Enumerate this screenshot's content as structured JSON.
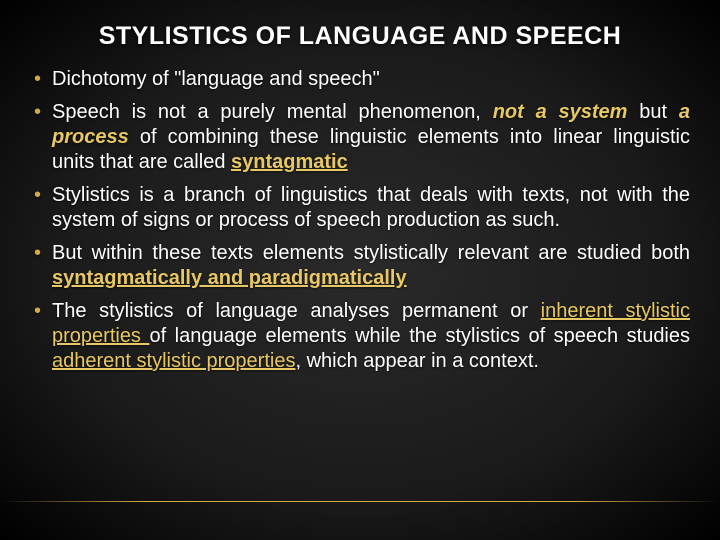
{
  "title": "STYLISTICS OF LANGUAGE AND SPEECH",
  "bullets": [
    {
      "pre": "Dichotomy of \"language and speech\""
    },
    {
      "pre": "Speech is not a purely mental phenomenon, ",
      "em1": "not a system",
      "mid1": " but ",
      "em2": "a process",
      "mid2": " of combining these linguistic elements into linear linguistic units that are called ",
      "u1": "syntagmatic"
    },
    {
      "pre": "Stylistics is a branch of linguistics that deals with texts, not with the system of signs or process of speech production as such."
    },
    {
      "pre": "But within these texts elements stylistically relevant are studied both ",
      "u1": "syntagmatically and paradigmatically"
    },
    {
      "pre": "The stylistics of language analyses permanent or ",
      "up1": "inherent stylistic properties ",
      "mid1": "of language elements while the stylistics of speech studies ",
      "up2": "adherent stylistic properties",
      "post": ", which appear in a context."
    }
  ],
  "colors": {
    "accent": "#e8c862",
    "bullet": "#d4a843",
    "text": "#ffffff",
    "bg_inner": "#2a2a2a",
    "bg_outer": "#000000"
  },
  "fontsize": {
    "title": 25,
    "body": 20
  }
}
